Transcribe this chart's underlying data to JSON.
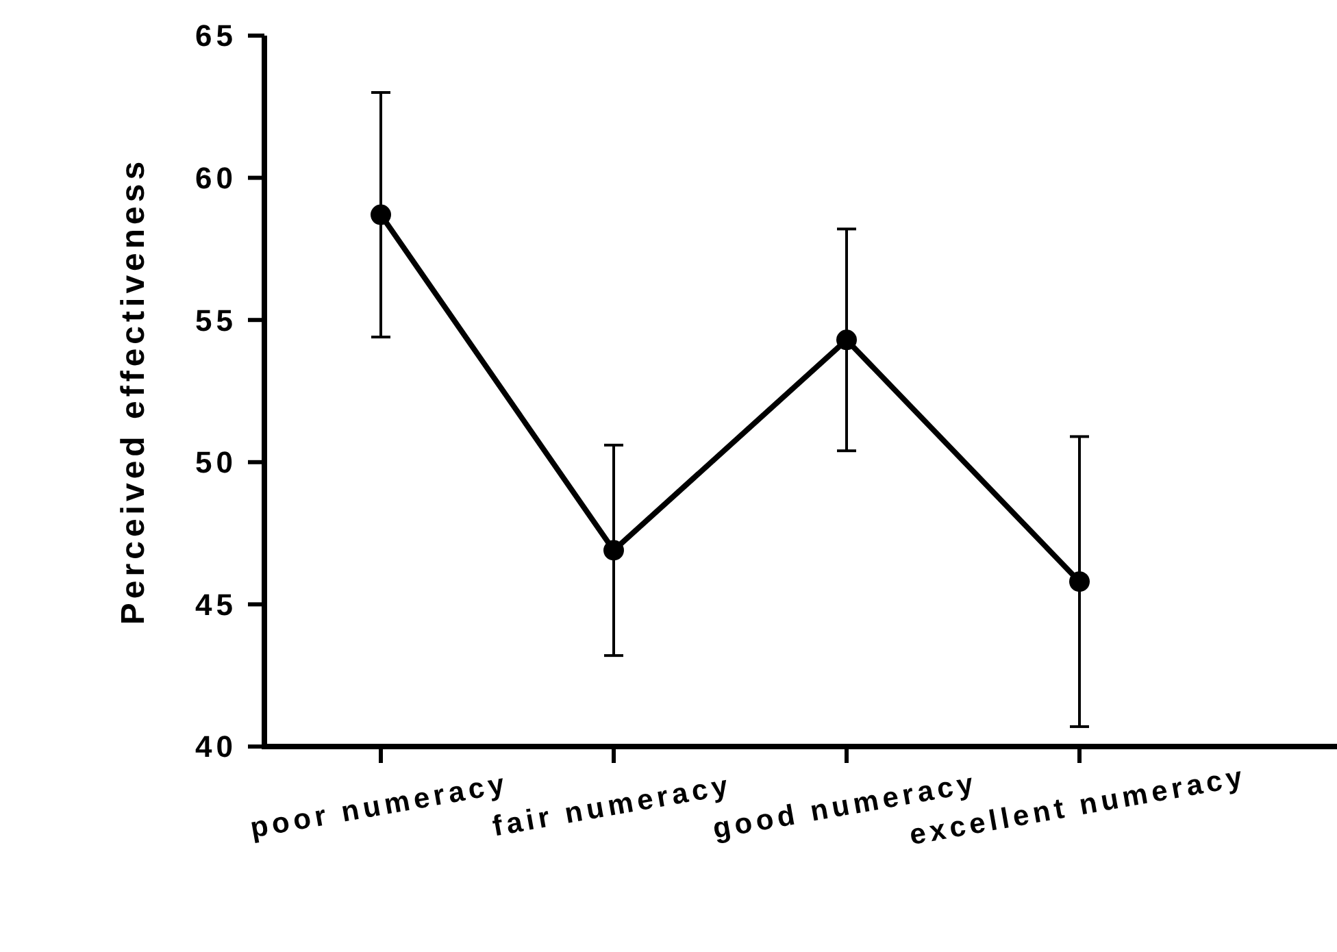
{
  "chart_data": {
    "type": "line",
    "ylabel": "Perceived effectiveness",
    "categories": [
      "poor numeracy",
      "fair numeracy",
      "good numeracy",
      "excellent numeracy"
    ],
    "series": [
      {
        "color": "#000000",
        "values": [
          58.7,
          46.9,
          54.3,
          45.8
        ],
        "errors": [
          4.3,
          3.7,
          3.9,
          5.1
        ]
      }
    ],
    "ylim": [
      40,
      65
    ],
    "yticks": [
      40,
      45,
      50,
      55,
      60,
      65
    ],
    "marker": "circle",
    "line_style": "solid",
    "grid": false
  }
}
